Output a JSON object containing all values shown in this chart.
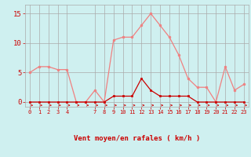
{
  "x": [
    0,
    1,
    2,
    3,
    4,
    5,
    6,
    7,
    8,
    9,
    10,
    11,
    12,
    13,
    14,
    15,
    16,
    17,
    18,
    19,
    20,
    21,
    22,
    23
  ],
  "rafales": [
    5,
    6,
    6,
    5.5,
    5.5,
    0,
    0,
    2,
    0,
    10.5,
    11,
    11,
    13,
    15,
    13,
    11,
    8,
    4,
    2.5,
    2.5,
    0,
    6,
    2,
    3
  ],
  "moyen": [
    0,
    0,
    0,
    0,
    0,
    0,
    0,
    0,
    0,
    1,
    1,
    1,
    4,
    2,
    1,
    1,
    1,
    1,
    0,
    0,
    0,
    0,
    0,
    0
  ],
  "color_rafales": "#f08080",
  "color_moyen": "#cc0000",
  "bg_color": "#cff0f0",
  "grid_color": "#aaaaaa",
  "xlabel": "Vent moyen/en rafales ( km/h )",
  "xlabel_color": "#cc0000",
  "ylabel_color": "#cc0000",
  "yticks": [
    0,
    5,
    10,
    15
  ],
  "xticks": [
    0,
    1,
    2,
    3,
    4,
    7,
    8,
    9,
    10,
    11,
    12,
    13,
    14,
    15,
    16,
    17,
    18,
    19,
    20,
    21,
    22,
    23
  ],
  "ylim": [
    -0.8,
    16.5
  ],
  "xlim": [
    -0.5,
    23.5
  ]
}
